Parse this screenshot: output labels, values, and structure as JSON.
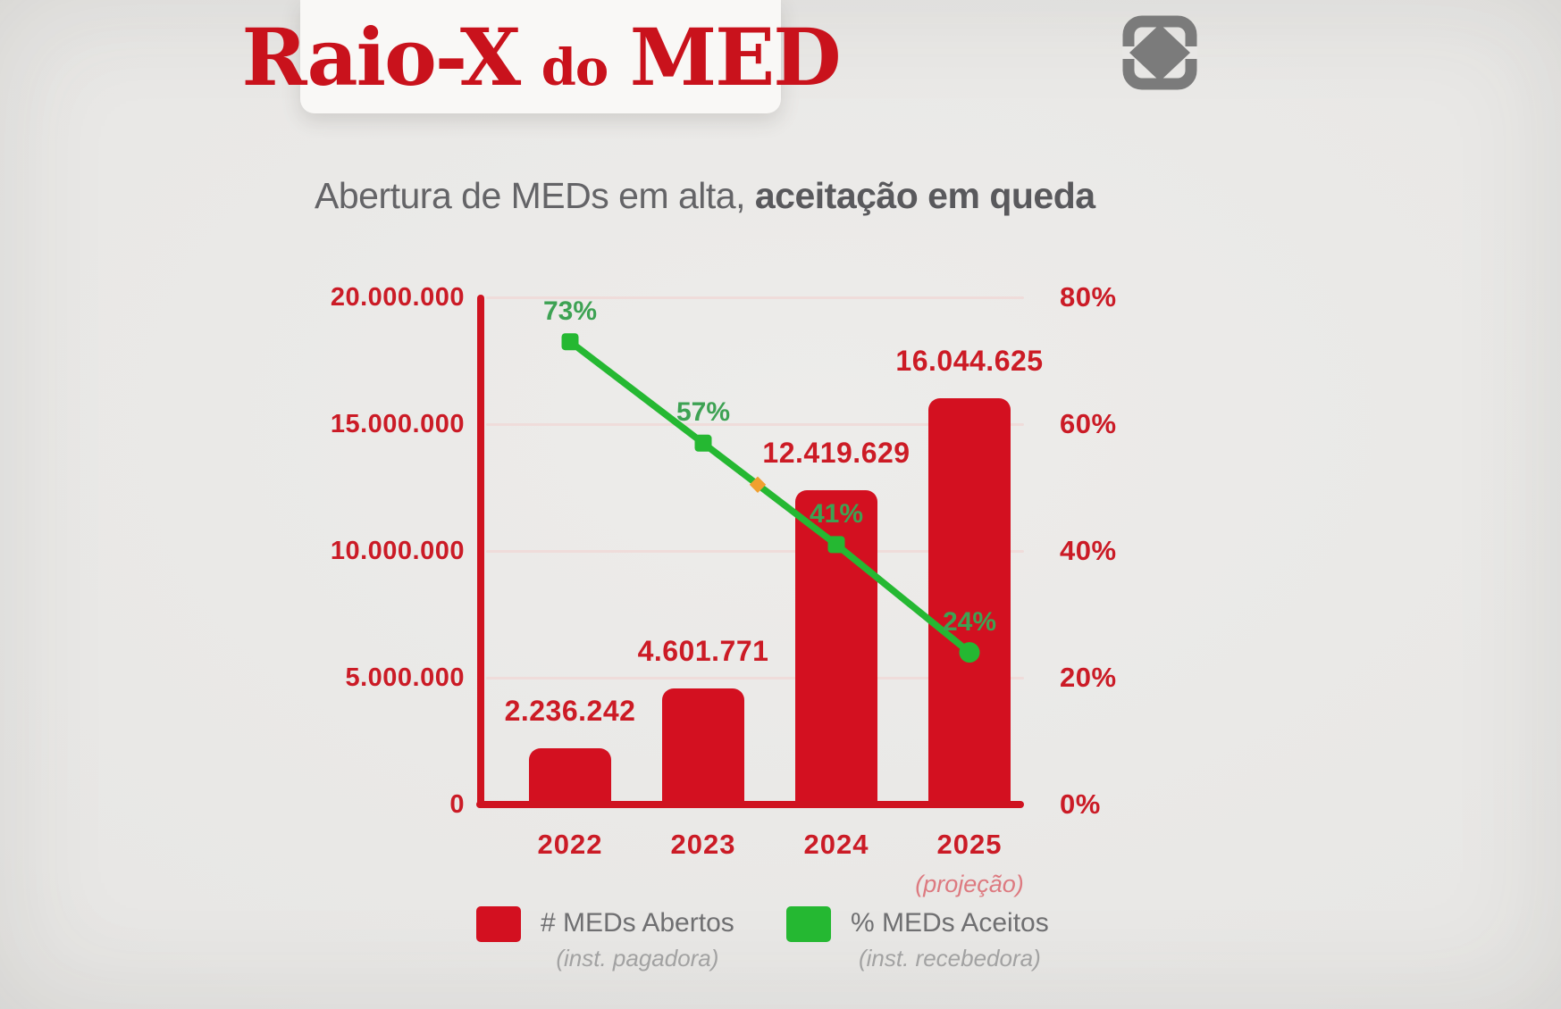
{
  "header": {
    "title_part1": "Raio-X",
    "title_connector": "do",
    "title_part2": "MED"
  },
  "subtitle": {
    "normal": "Abertura de MEDs em alta, ",
    "bold": "aceitação em queda"
  },
  "chart_data": {
    "type": "bar",
    "title": "Abertura de MEDs em alta, aceitação em queda",
    "categories": [
      "2022",
      "2023",
      "2024",
      "2025"
    ],
    "category_note": {
      "index": 3,
      "text": "(projeção)"
    },
    "series": [
      {
        "name": "# MEDs Abertos",
        "legend_note": "(inst. pagadora)",
        "type": "bar",
        "color": "#d31020",
        "values": [
          2236242,
          4601771,
          12419629,
          16044625
        ],
        "labels": [
          "2.236.242",
          "4.601.771",
          "12.419.629",
          "16.044.625"
        ]
      },
      {
        "name": "% MEDs Aceitos",
        "legend_note": "(inst. recebedora)",
        "type": "line",
        "color": "#25b832",
        "values": [
          73,
          57,
          41,
          24
        ],
        "labels": [
          "73%",
          "57%",
          "41%",
          "24%"
        ]
      }
    ],
    "left_axis": {
      "max": 20000000,
      "min": 0,
      "ticks": [
        "20.000.000",
        "15.000.000",
        "10.000.000",
        "5.000.000",
        "0"
      ]
    },
    "right_axis": {
      "max": 80,
      "min": 0,
      "ticks": [
        "80%",
        "60%",
        "40%",
        "20%",
        "0%"
      ]
    },
    "grid": true,
    "legend_position": "bottom"
  },
  "colors": {
    "red": "#cf1320",
    "bar_red": "#d31020",
    "line_green": "#25b832",
    "green_text": "#3da253",
    "accent_orange": "#f0a030",
    "background": "#e8e7e5",
    "banner": "#f9f8f6",
    "logo_gray": "#7b7b7b",
    "subtitle_text": "#646467",
    "projection_red": "#dd7a80",
    "gridline": "#efdcda"
  }
}
